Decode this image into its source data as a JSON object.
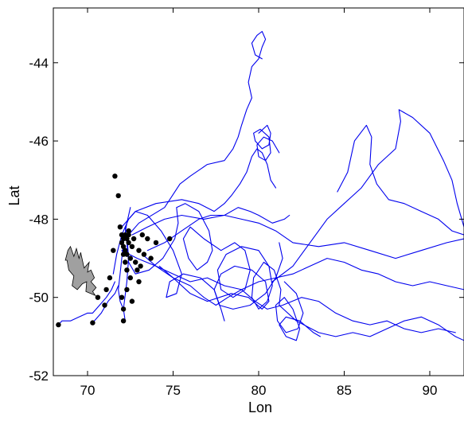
{
  "chart_data": {
    "type": "line",
    "title": "",
    "xlabel": "Lon",
    "ylabel": "Lat",
    "xlim": [
      68,
      92
    ],
    "ylim": [
      -52,
      -42.6
    ],
    "xticks": [
      70,
      75,
      80,
      85,
      90
    ],
    "yticks": [
      -44,
      -46,
      -48,
      -50,
      -52
    ],
    "grid": false,
    "legend": "none",
    "colors": {
      "tracks": "#0000ee",
      "points": "#000000",
      "island_fill": "#a0a0a0",
      "island_edge": "#000000"
    },
    "series": [
      {
        "x": [
          72.2,
          73,
          74.5,
          75.4,
          76,
          77,
          78,
          78.5,
          78.8,
          79,
          79.3,
          79.6,
          79.4,
          79.6,
          80,
          80.2,
          80.4,
          80.2,
          79.9,
          79.6,
          79.8,
          80.2
        ],
        "y": [
          -48.5,
          -48.1,
          -47.7,
          -47.1,
          -46.9,
          -46.6,
          -46.5,
          -46.2,
          -45.9,
          -45.6,
          -45.2,
          -44.9,
          -44.5,
          -44.1,
          -43.9,
          -43.6,
          -43.4,
          -43.2,
          -43.3,
          -43.5,
          -43.8,
          -43.9
        ]
      },
      {
        "x": [
          72.0,
          72.8,
          74,
          75.5,
          76.5,
          77.4,
          78,
          78.4,
          78.9,
          79.3,
          79.6,
          79.9,
          80.2,
          80.5,
          80.7,
          81
        ],
        "y": [
          -48.2,
          -47.8,
          -47.6,
          -47.5,
          -47.6,
          -47.8,
          -47.6,
          -47.4,
          -47.1,
          -46.8,
          -46.4,
          -46.2,
          -46.3,
          -46.6,
          -47.0,
          -47.2
        ]
      },
      {
        "x": [
          72.6,
          73.5,
          74.5,
          75.5,
          76.8,
          78,
          79,
          80,
          81,
          82,
          83.5,
          85,
          86.5,
          88,
          89.5,
          91,
          92
        ],
        "y": [
          -48.4,
          -48.2,
          -48.0,
          -47.9,
          -48.0,
          -47.9,
          -48.0,
          -48.1,
          -48.3,
          -48.6,
          -48.7,
          -48.6,
          -48.8,
          -49.0,
          -48.8,
          -48.6,
          -48.5
        ]
      },
      {
        "x": [
          73.2,
          74,
          75,
          76,
          77,
          78,
          79,
          80,
          81,
          82,
          83,
          84,
          85,
          86,
          87,
          88,
          89,
          90,
          91,
          92
        ],
        "y": [
          -48.9,
          -49.2,
          -49.4,
          -49.6,
          -49.5,
          -49.7,
          -49.8,
          -49.6,
          -49.5,
          -49.4,
          -49.2,
          -49.0,
          -49.1,
          -49.3,
          -49.4,
          -49.6,
          -49.7,
          -49.6,
          -49.7,
          -49.8
        ]
      },
      {
        "x": [
          74.2,
          75,
          76,
          76.8,
          77.5,
          78.2,
          79,
          79.8,
          80.5,
          81.4,
          82.5,
          83.5,
          84.5,
          85.5,
          86.5,
          87.5,
          88.5,
          89.5,
          90.5,
          91.5
        ],
        "y": [
          -49.2,
          -49.5,
          -49.7,
          -50.0,
          -50.2,
          -50.0,
          -49.8,
          -50.1,
          -50.3,
          -50.2,
          -50.0,
          -50.1,
          -50.4,
          -50.6,
          -50.7,
          -50.6,
          -50.8,
          -50.9,
          -50.8,
          -50.9
        ]
      },
      {
        "x": [
          80.8,
          82,
          83,
          84,
          85,
          86,
          87,
          88,
          88.3,
          88.2,
          89,
          90,
          90.8,
          91.3,
          91.6,
          92
        ],
        "y": [
          -49.6,
          -49.2,
          -48.6,
          -48.0,
          -47.6,
          -47.2,
          -46.6,
          -46.2,
          -45.5,
          -45.2,
          -45.4,
          -45.8,
          -46.5,
          -47.0,
          -47.6,
          -48.2
        ]
      },
      {
        "x": [
          84.6,
          85.2,
          85.6,
          86.3,
          86.6,
          86.5,
          86.9,
          87.6,
          88.5,
          89.5,
          90.5,
          91.3,
          92
        ],
        "y": [
          -47.3,
          -46.8,
          -46.0,
          -45.6,
          -45.9,
          -46.6,
          -47.1,
          -47.5,
          -47.6,
          -47.8,
          -48.0,
          -48.3,
          -48.4
        ]
      },
      {
        "x": [
          81.2,
          82.2,
          83.5,
          84.5,
          85.5,
          86.5,
          87.5,
          88.5,
          89.5,
          90.5,
          91.5,
          92
        ],
        "y": [
          -50.2,
          -50.6,
          -50.9,
          -51.0,
          -50.9,
          -51.0,
          -50.8,
          -50.6,
          -50.5,
          -50.7,
          -51.0,
          -51.1
        ]
      },
      {
        "x": [
          72.2,
          72.3,
          72.4,
          72.8,
          73.6,
          74.4,
          75.1,
          75.3,
          75.2,
          75.7,
          76.5,
          77.1,
          77.3,
          77.0,
          76.4,
          75.9,
          75.6,
          76.0,
          76.8,
          77.8,
          78.6,
          79.2,
          79.5,
          79.2,
          78.5,
          77.8,
          77.6,
          78.1,
          79.0,
          80.0,
          80.6,
          80.8,
          80.5,
          80.0,
          79.6,
          79.7,
          80.3,
          80.9,
          81.3,
          81.2
        ],
        "y": [
          -48.2,
          -48.6,
          -49.1,
          -49.4,
          -49.3,
          -49.0,
          -48.5,
          -48.1,
          -47.7,
          -47.6,
          -47.8,
          -48.3,
          -48.8,
          -49.1,
          -49.3,
          -49.0,
          -48.5,
          -48.2,
          -48.5,
          -48.8,
          -48.6,
          -48.8,
          -49.3,
          -49.8,
          -50.0,
          -49.8,
          -49.3,
          -48.9,
          -48.7,
          -48.8,
          -49.2,
          -49.7,
          -50.1,
          -50.3,
          -50.0,
          -49.5,
          -49.1,
          -49.3,
          -49.8,
          -50.2
        ]
      },
      {
        "x": [
          72.0,
          72.9,
          74,
          75,
          76,
          77,
          78.4,
          79.4,
          80.2,
          80.6,
          80.4,
          79.6,
          78.6,
          77.8,
          77.4,
          77.7,
          78.5,
          79.5,
          80.4,
          81.0,
          81.4,
          81.2
        ],
        "y": [
          -48.8,
          -49.0,
          -49.2,
          -49.5,
          -49.9,
          -50.1,
          -49.9,
          -50.0,
          -50.3,
          -50.1,
          -49.6,
          -49.3,
          -49.2,
          -49.4,
          -49.8,
          -50.2,
          -50.3,
          -50.2,
          -49.9,
          -49.5,
          -49.0,
          -48.6
        ]
      },
      {
        "x": [
          81.5,
          82.2,
          82.6,
          82.3,
          81.6,
          81.1,
          81.0,
          81.5,
          82.0,
          82.4,
          82.2,
          81.6,
          81.2,
          81.6,
          82.4,
          83.2,
          83.6
        ],
        "y": [
          -49.6,
          -49.9,
          -50.4,
          -50.8,
          -50.9,
          -50.6,
          -50.2,
          -50.0,
          -50.3,
          -50.8,
          -51.1,
          -51.0,
          -50.7,
          -50.5,
          -50.6,
          -50.9,
          -51.0
        ]
      },
      {
        "x": [
          71.5,
          71.7,
          72.0,
          72.4,
          72.8,
          73.5,
          74.3,
          75.0,
          75.5,
          75.2,
          74.6,
          74.8,
          75.6,
          76.6,
          77.4,
          77.8,
          78.0
        ],
        "y": [
          -49.4,
          -48.9,
          -48.4,
          -48.0,
          -47.8,
          -47.9,
          -48.3,
          -48.8,
          -49.4,
          -49.9,
          -50.0,
          -49.6,
          -49.4,
          -49.5,
          -49.8,
          -50.3,
          -50.6
        ]
      },
      {
        "x": [
          71.6,
          71.4,
          71.1,
          70.7,
          70.3,
          70.0,
          69.5,
          69.0,
          68.5,
          68.3
        ],
        "y": [
          -49.6,
          -49.8,
          -50.0,
          -50.2,
          -50.4,
          -50.4,
          -50.5,
          -50.6,
          -50.6,
          -50.7
        ]
      },
      {
        "x": [
          71.8,
          71.6,
          71.2,
          70.8,
          70.3
        ],
        "y": [
          -49.7,
          -49.9,
          -50.1,
          -50.4,
          -50.65
        ]
      },
      {
        "x": [
          73.5,
          74.5,
          75.5,
          76.5,
          77.2,
          78.0,
          78.8,
          79.5,
          80.0,
          80.8,
          81.5,
          81.8
        ],
        "y": [
          -48.8,
          -48.6,
          -48.3,
          -48.0,
          -47.9,
          -47.9,
          -47.7,
          -47.8,
          -47.9,
          -48.1,
          -48.0,
          -47.9
        ]
      },
      {
        "x": [
          72.5,
          72.3,
          72.1,
          72.0,
          71.9,
          71.8,
          71.9,
          72.1,
          72.2,
          72.1,
          72.3,
          72.4,
          72.3
        ],
        "y": [
          -47.7,
          -48.1,
          -48.6,
          -49.0,
          -49.4,
          -49.8,
          -50.1,
          -50.3,
          -50.6,
          -50.3,
          -49.6,
          -49.0,
          -48.4
        ]
      },
      {
        "x": [
          80.0,
          80.5,
          80.7,
          80.6,
          80.2,
          79.8,
          79.7,
          80.1,
          80.6,
          80.7,
          80.4,
          80.0,
          79.9,
          80.3,
          80.8,
          81.2
        ],
        "y": [
          -45.8,
          -45.6,
          -45.8,
          -46.1,
          -46.2,
          -46.0,
          -45.8,
          -45.7,
          -45.9,
          -46.3,
          -46.5,
          -46.4,
          -46.1,
          -45.9,
          -46.0,
          -46.3
        ]
      }
    ],
    "points": {
      "x": [
        71.6,
        71.8,
        71.9,
        72.0,
        72.0,
        72.1,
        72.1,
        72.1,
        72.2,
        72.2,
        72.2,
        72.3,
        72.3,
        72.3,
        72.4,
        72.4,
        72.5,
        72.5,
        72.6,
        72.7,
        72.8,
        73.0,
        73.1,
        73.2,
        73.3,
        73.5,
        73.7,
        74.0,
        74.8,
        71.3,
        71.1,
        70.6,
        71.0,
        72.0,
        72.1,
        72.3,
        72.6,
        73.0,
        70.3,
        68.3,
        72.1,
        72.4,
        71.5,
        72.9
      ],
      "y": [
        -46.9,
        -47.4,
        -48.2,
        -48.4,
        -48.6,
        -48.5,
        -48.7,
        -48.9,
        -48.4,
        -48.8,
        -49.1,
        -48.5,
        -48.9,
        -49.3,
        -48.4,
        -48.6,
        -49.0,
        -49.5,
        -48.7,
        -48.5,
        -49.1,
        -48.8,
        -49.2,
        -48.4,
        -48.9,
        -48.5,
        -49.0,
        -48.6,
        -48.5,
        -49.5,
        -49.8,
        -50.0,
        -50.2,
        -50.0,
        -50.3,
        -49.8,
        -50.1,
        -49.6,
        -50.65,
        -50.7,
        -50.6,
        -48.3,
        -48.8,
        -49.3
      ]
    },
    "island": {
      "x": [
        68.7,
        68.85,
        69.0,
        69.2,
        69.35,
        69.5,
        69.6,
        69.8,
        70.1,
        70.0,
        70.2,
        70.4,
        70.2,
        70.5,
        70.3,
        70.45,
        69.9,
        69.95,
        69.7,
        69.4,
        69.1,
        69.2,
        68.9,
        68.8
      ],
      "y": [
        -49.05,
        -48.8,
        -48.7,
        -48.95,
        -48.75,
        -49.0,
        -48.85,
        -49.25,
        -49.1,
        -49.35,
        -49.3,
        -49.5,
        -49.6,
        -49.75,
        -49.85,
        -49.95,
        -49.85,
        -49.6,
        -49.65,
        -49.8,
        -49.7,
        -49.45,
        -49.3,
        -49.05
      ]
    }
  }
}
